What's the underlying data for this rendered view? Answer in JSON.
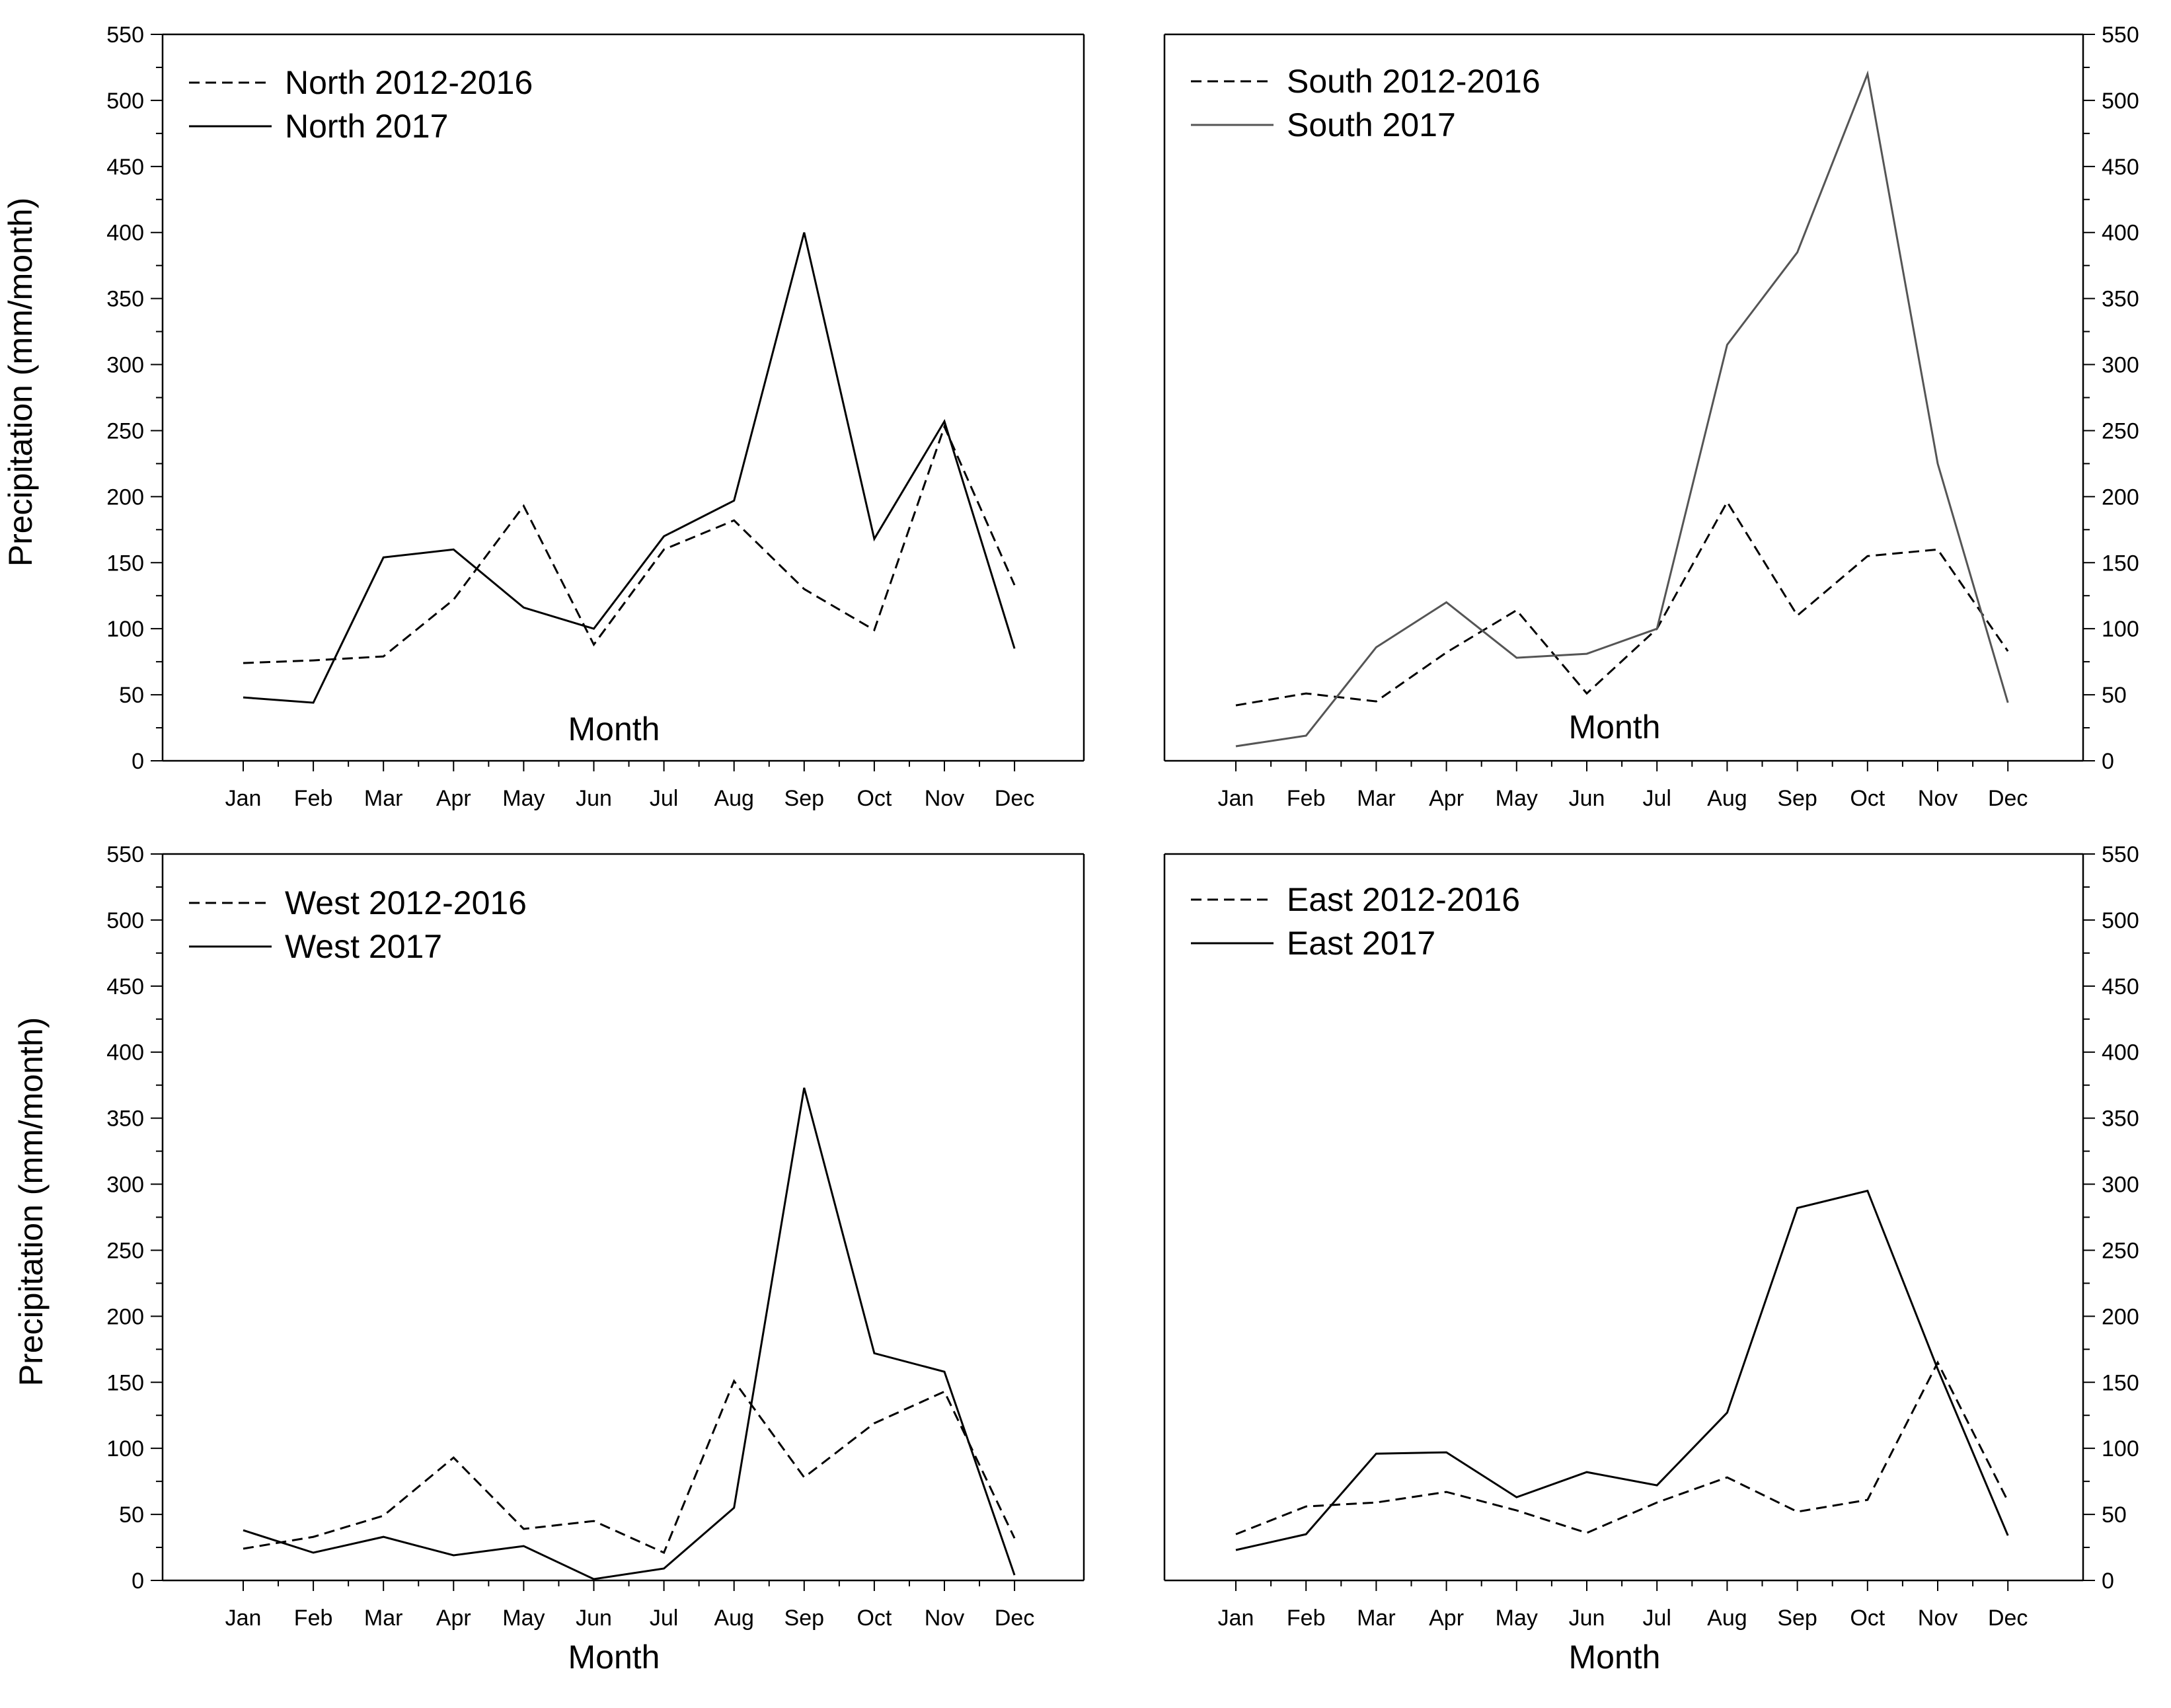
{
  "chart_data": [
    {
      "id": "north",
      "type": "line",
      "categories": [
        "Jan",
        "Feb",
        "Mar",
        "Apr",
        "May",
        "Jun",
        "Jul",
        "Aug",
        "Sep",
        "Oct",
        "Nov",
        "Dec"
      ],
      "series": [
        {
          "name": "North 2012-2016",
          "style": "dashed",
          "color": "#000000",
          "values": [
            74,
            76,
            79,
            122,
            193,
            88,
            160,
            182,
            130,
            99,
            253,
            133
          ]
        },
        {
          "name": "North 2017",
          "style": "solid",
          "color": "#000000",
          "values": [
            48,
            44,
            154,
            160,
            116,
            100,
            170,
            197,
            400,
            168,
            257,
            85
          ]
        }
      ],
      "xlabel": "Month",
      "ylabel": "Precipitation (mm/month)",
      "ylim": [
        0,
        550
      ],
      "yticks": [
        "0",
        "50",
        "100",
        "150",
        "200",
        "250",
        "300",
        "350",
        "400",
        "450",
        "500",
        "550"
      ],
      "yaxis_side": "left",
      "legend_position": "top-left"
    },
    {
      "id": "south",
      "type": "line",
      "categories": [
        "Jan",
        "Feb",
        "Mar",
        "Apr",
        "May",
        "Jun",
        "Jul",
        "Aug",
        "Sep",
        "Oct",
        "Nov",
        "Dec"
      ],
      "series": [
        {
          "name": "South 2012-2016",
          "style": "dashed",
          "color": "#000000",
          "values": [
            42,
            51,
            45,
            82,
            114,
            51,
            100,
            196,
            110,
            155,
            160,
            83
          ]
        },
        {
          "name": "South 2017",
          "style": "solid",
          "color": "#555555",
          "values": [
            11,
            19,
            86,
            120,
            78,
            81,
            100,
            315,
            385,
            520,
            225,
            44
          ]
        }
      ],
      "xlabel": "Month",
      "ylabel": "",
      "ylim": [
        0,
        550
      ],
      "yticks": [
        "0",
        "50",
        "100",
        "150",
        "200",
        "250",
        "300",
        "350",
        "400",
        "450",
        "500",
        "550"
      ],
      "yaxis_side": "right",
      "legend_position": "top-left"
    },
    {
      "id": "west",
      "type": "line",
      "categories": [
        "Jan",
        "Feb",
        "Mar",
        "Apr",
        "May",
        "Jun",
        "Jul",
        "Aug",
        "Sep",
        "Oct",
        "Nov",
        "Dec"
      ],
      "series": [
        {
          "name": "West 2012-2016",
          "style": "dashed",
          "color": "#000000",
          "values": [
            24,
            33,
            49,
            93,
            39,
            45,
            21,
            151,
            78,
            119,
            143,
            32
          ]
        },
        {
          "name": "West 2017",
          "style": "solid",
          "color": "#000000",
          "values": [
            38,
            21,
            33,
            19,
            26,
            1,
            9,
            55,
            373,
            172,
            158,
            4
          ]
        }
      ],
      "xlabel": "Month",
      "ylabel": "Precipitation (mm/month)",
      "ylim": [
        0,
        550
      ],
      "yticks": [
        "0",
        "50",
        "100",
        "150",
        "200",
        "250",
        "300",
        "350",
        "400",
        "450",
        "500",
        "550"
      ],
      "yaxis_side": "left",
      "legend_position": "top-left"
    },
    {
      "id": "east",
      "type": "line",
      "categories": [
        "Jan",
        "Feb",
        "Mar",
        "Apr",
        "May",
        "Jun",
        "Jul",
        "Aug",
        "Sep",
        "Oct",
        "Nov",
        "Dec"
      ],
      "series": [
        {
          "name": "East 2012-2016",
          "style": "dashed",
          "color": "#000000",
          "values": [
            35,
            56,
            59,
            67,
            53,
            36,
            59,
            78,
            52,
            61,
            165,
            60
          ]
        },
        {
          "name": "East 2017",
          "style": "solid",
          "color": "#000000",
          "values": [
            23,
            35,
            96,
            97,
            63,
            82,
            72,
            127,
            282,
            295,
            160,
            34
          ]
        }
      ],
      "xlabel": "Month",
      "ylabel": "",
      "ylim": [
        0,
        550
      ],
      "yticks": [
        "0",
        "50",
        "100",
        "150",
        "200",
        "250",
        "300",
        "350",
        "400",
        "450",
        "500",
        "550"
      ],
      "yaxis_side": "right",
      "legend_position": "top-left"
    }
  ]
}
